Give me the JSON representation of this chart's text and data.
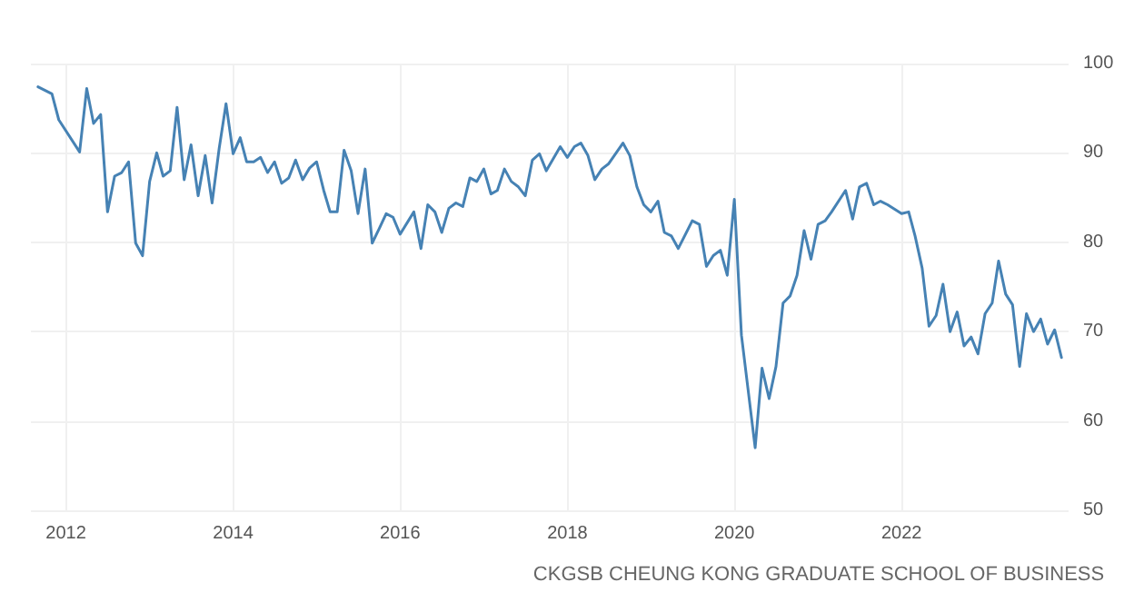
{
  "chart_data": {
    "type": "line",
    "annotations": [
      "CKGSB CHEUNG KONG GRADUATE SCHOOL OF BUSINESS"
    ],
    "xlim": [
      "2011-08",
      "2024-01"
    ],
    "xticks": [
      "2012",
      "2014",
      "2016",
      "2018",
      "2020",
      "2022"
    ],
    "ylim": [
      50,
      100
    ],
    "yticks": [
      50,
      60,
      70,
      80,
      90,
      100
    ],
    "grid": true,
    "marker": "none",
    "line_style": "solid",
    "series": [
      {
        "color": "#4682b4",
        "x": [
          "2011-09",
          "2011-11",
          "2011-12",
          "2012-03",
          "2012-04",
          "2012-05",
          "2012-06",
          "2012-07",
          "2012-08",
          "2012-09",
          "2012-10",
          "2012-11",
          "2012-12",
          "2013-01",
          "2013-02",
          "2013-03",
          "2013-04",
          "2013-05",
          "2013-06",
          "2013-07",
          "2013-08",
          "2013-09",
          "2013-10",
          "2013-11",
          "2013-12",
          "2014-01",
          "2014-02",
          "2014-03",
          "2014-04",
          "2014-05",
          "2014-06",
          "2014-07",
          "2014-08",
          "2014-09",
          "2014-10",
          "2014-11",
          "2014-12",
          "2015-01",
          "2015-02",
          "2015-03",
          "2015-04",
          "2015-05",
          "2015-06",
          "2015-07",
          "2015-08",
          "2015-09",
          "2015-10",
          "2015-11",
          "2015-12",
          "2016-01",
          "2016-03",
          "2016-04",
          "2016-05",
          "2016-06",
          "2016-07",
          "2016-08",
          "2016-09",
          "2016-10",
          "2016-11",
          "2016-12",
          "2017-01",
          "2017-02",
          "2017-03",
          "2017-04",
          "2017-05",
          "2017-06",
          "2017-07",
          "2017-08",
          "2017-09",
          "2017-10",
          "2017-12",
          "2018-01",
          "2018-02",
          "2018-03",
          "2018-04",
          "2018-05",
          "2018-06",
          "2018-07",
          "2018-09",
          "2018-10",
          "2018-11",
          "2018-12",
          "2019-01",
          "2019-02",
          "2019-03",
          "2019-04",
          "2019-05",
          "2019-07",
          "2019-08",
          "2019-09",
          "2019-10",
          "2019-11",
          "2019-12",
          "2020-01",
          "2020-02",
          "2020-04",
          "2020-05",
          "2020-06",
          "2020-07",
          "2020-08",
          "2020-09",
          "2020-10",
          "2020-11",
          "2020-12",
          "2021-01",
          "2021-02",
          "2021-03",
          "2021-05",
          "2021-06",
          "2021-07",
          "2021-08",
          "2021-09",
          "2021-10",
          "2021-11",
          "2022-01",
          "2022-02",
          "2022-03",
          "2022-04",
          "2022-05",
          "2022-06",
          "2022-07",
          "2022-08",
          "2022-09",
          "2022-10",
          "2022-11",
          "2022-12",
          "2023-01",
          "2023-02",
          "2023-03",
          "2023-04",
          "2023-05",
          "2023-06",
          "2023-07",
          "2023-08",
          "2023-09",
          "2023-10",
          "2023-11",
          "2023-12"
        ],
        "values": [
          97.4,
          96.6,
          93.7,
          90.1,
          97.2,
          93.3,
          94.3,
          83.4,
          87.4,
          87.8,
          89.0,
          79.9,
          78.5,
          86.8,
          90.0,
          87.4,
          88.0,
          95.1,
          87.0,
          90.9,
          85.2,
          89.7,
          84.4,
          90.5,
          95.5,
          89.9,
          91.7,
          89.0,
          89.0,
          89.5,
          87.8,
          89.0,
          86.6,
          87.2,
          89.2,
          87.0,
          88.3,
          89.0,
          85.8,
          83.4,
          83.4,
          90.3,
          88.0,
          83.2,
          88.2,
          79.9,
          81.5,
          83.2,
          82.8,
          80.9,
          83.4,
          79.3,
          84.2,
          83.4,
          81.1,
          83.8,
          84.4,
          84.0,
          87.2,
          86.8,
          88.2,
          85.4,
          85.8,
          88.2,
          86.8,
          86.2,
          85.2,
          89.2,
          89.9,
          88.0,
          90.7,
          89.5,
          90.7,
          91.1,
          89.7,
          87.0,
          88.2,
          88.8,
          91.1,
          89.7,
          86.2,
          84.2,
          83.4,
          84.6,
          81.1,
          80.7,
          79.3,
          82.4,
          82.0,
          77.3,
          78.5,
          79.1,
          76.3,
          84.8,
          69.6,
          57.0,
          65.9,
          62.5,
          66.1,
          73.2,
          74.0,
          76.3,
          81.3,
          78.1,
          82.0,
          82.4,
          83.4,
          85.8,
          82.6,
          86.2,
          86.6,
          84.2,
          84.6,
          84.2,
          83.2,
          83.4,
          80.7,
          77.1,
          70.6,
          71.8,
          75.3,
          70.0,
          72.2,
          68.4,
          69.4,
          67.5,
          72.0,
          73.2,
          77.9,
          74.2,
          73.0,
          66.1,
          72.0,
          70.0,
          71.4,
          68.6,
          70.2,
          67.1
        ]
      }
    ]
  }
}
